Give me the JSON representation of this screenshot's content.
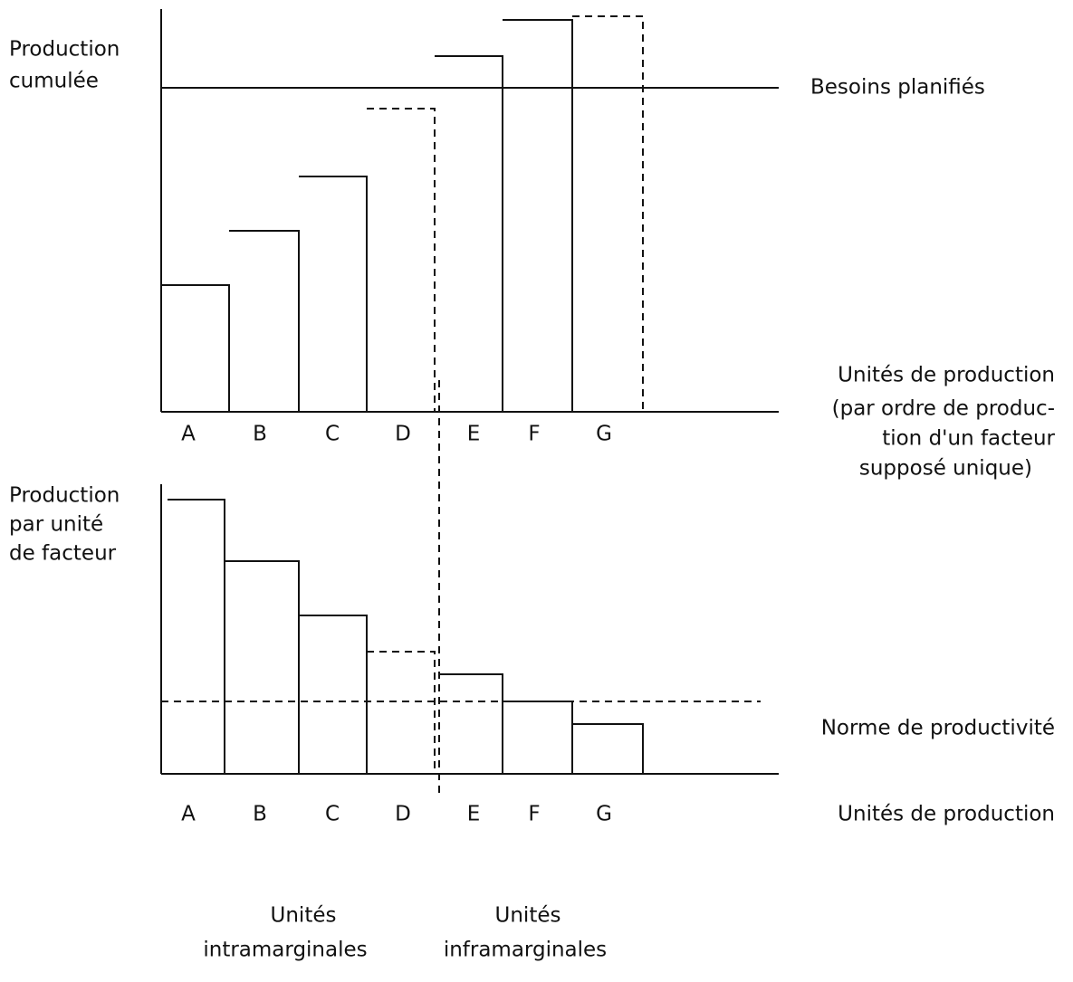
{
  "top": {
    "y_label": [
      "Production",
      "cumulée"
    ],
    "line_label": "Besoins planifiés",
    "x_label": [
      "Unités de production",
      "(par ordre de produc-",
      "tion d'un facteur",
      "supposé unique)"
    ]
  },
  "bottom": {
    "y_label": [
      "Production",
      "par unité",
      "de facteur"
    ],
    "line_label": "Norme de productivité",
    "x_label": "Unités de production"
  },
  "categories": [
    "A",
    "B",
    "C",
    "D",
    "E",
    "F",
    "G"
  ],
  "groups": [
    [
      "Unités",
      "intramarginales"
    ],
    [
      "Unités",
      "inframarginales"
    ]
  ]
}
